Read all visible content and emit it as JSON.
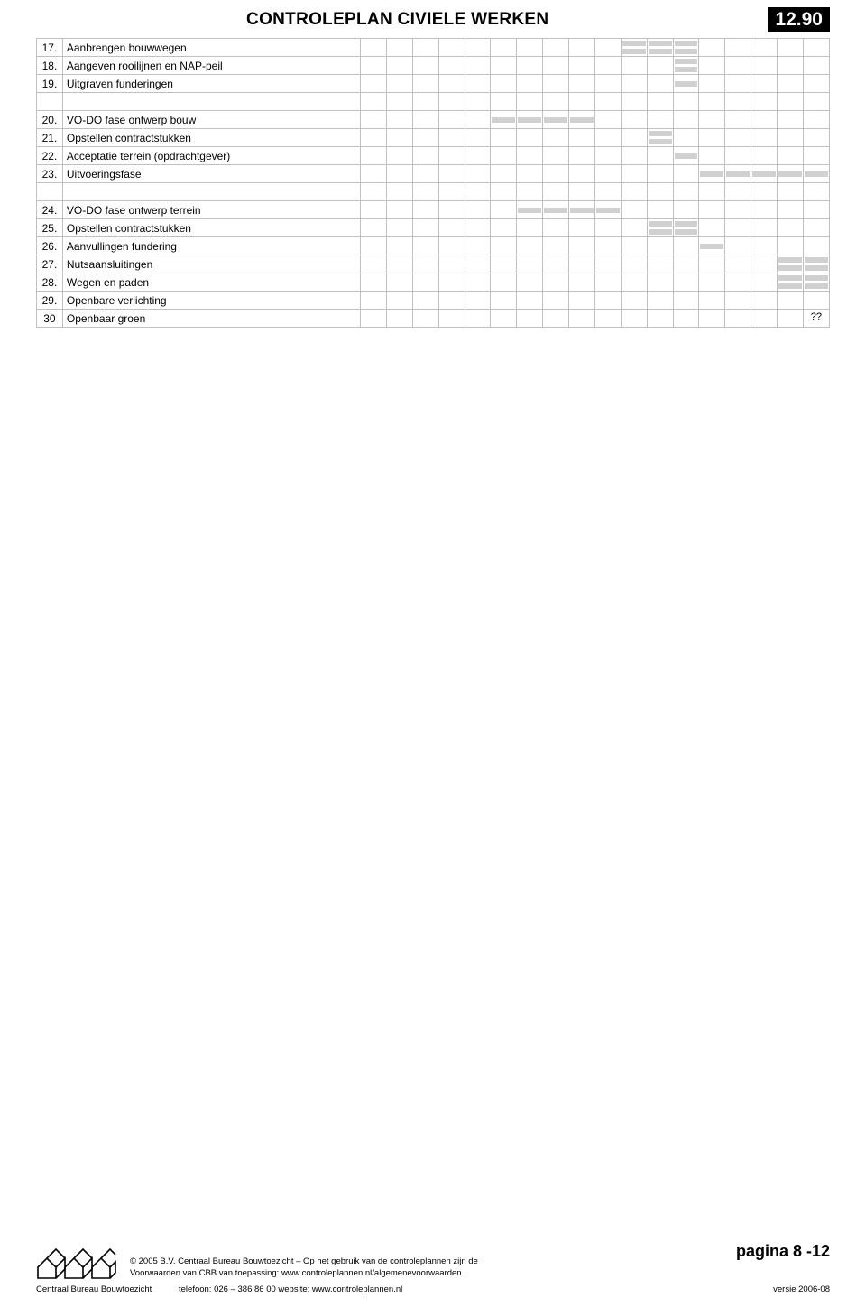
{
  "header": {
    "title": "CONTROLEPLAN CIVIELE WERKEN",
    "code": "12.90"
  },
  "columns": 18,
  "rows": [
    {
      "num": "17.",
      "desc": "Aanbrengen bouwwegen",
      "bars": [
        {
          "col": 11,
          "style": "top"
        },
        {
          "col": 12,
          "style": "top"
        },
        {
          "col": 13,
          "style": "top"
        },
        {
          "col": 11,
          "style": "bot"
        },
        {
          "col": 12,
          "style": "bot"
        },
        {
          "col": 13,
          "style": "bot"
        }
      ]
    },
    {
      "num": "18.",
      "desc": "Aangeven rooilijnen en NAP-peil",
      "bars": [
        {
          "col": 13,
          "style": "top"
        },
        {
          "col": 13,
          "style": "bot"
        }
      ]
    },
    {
      "num": "19.",
      "desc": "Uitgraven funderingen",
      "bars": [
        {
          "col": 13,
          "style": "mid"
        }
      ]
    },
    {
      "spacer": true
    },
    {
      "num": "20.",
      "desc": "VO-DO fase ontwerp bouw",
      "bars": [
        {
          "col": 6,
          "style": "mid"
        },
        {
          "col": 7,
          "style": "mid"
        },
        {
          "col": 8,
          "style": "mid"
        },
        {
          "col": 9,
          "style": "mid"
        }
      ]
    },
    {
      "num": "21.",
      "desc": "Opstellen contractstukken",
      "bars": [
        {
          "col": 12,
          "style": "top"
        },
        {
          "col": 12,
          "style": "bot"
        }
      ]
    },
    {
      "num": "22.",
      "desc": "Acceptatie terrein (opdrachtgever)",
      "bars": [
        {
          "col": 13,
          "style": "mid"
        }
      ]
    },
    {
      "num": "23.",
      "desc": "Uitvoeringsfase",
      "bars": [
        {
          "col": 14,
          "style": "mid"
        },
        {
          "col": 15,
          "style": "mid"
        },
        {
          "col": 16,
          "style": "mid"
        },
        {
          "col": 17,
          "style": "mid"
        },
        {
          "col": 18,
          "style": "mid"
        }
      ]
    },
    {
      "spacer": true
    },
    {
      "num": "24.",
      "desc": "VO-DO fase ontwerp terrein",
      "bars": [
        {
          "col": 7,
          "style": "mid"
        },
        {
          "col": 8,
          "style": "mid"
        },
        {
          "col": 9,
          "style": "mid"
        },
        {
          "col": 10,
          "style": "mid"
        }
      ]
    },
    {
      "num": "25.",
      "desc": "Opstellen contractstukken",
      "bars": [
        {
          "col": 12,
          "style": "top"
        },
        {
          "col": 13,
          "style": "top"
        },
        {
          "col": 12,
          "style": "bot"
        },
        {
          "col": 13,
          "style": "bot"
        }
      ]
    },
    {
      "num": "26.",
      "desc": "Aanvullingen fundering",
      "bars": [
        {
          "col": 14,
          "style": "mid"
        }
      ]
    },
    {
      "num": "27.",
      "desc": "Nutsaansluitingen",
      "bars": [
        {
          "col": 17,
          "style": "top"
        },
        {
          "col": 18,
          "style": "top"
        },
        {
          "col": 17,
          "style": "bot"
        },
        {
          "col": 18,
          "style": "bot"
        }
      ]
    },
    {
      "num": "28.",
      "desc": "Wegen en paden",
      "bars": [
        {
          "col": 17,
          "style": "top"
        },
        {
          "col": 18,
          "style": "top"
        },
        {
          "col": 17,
          "style": "bot"
        },
        {
          "col": 18,
          "style": "bot"
        }
      ]
    },
    {
      "num": "29.",
      "desc": "Openbare verlichting",
      "bars": []
    },
    {
      "num": "30",
      "desc": "Openbaar groen",
      "bars": [],
      "trail": "??"
    }
  ],
  "footer": {
    "copyright": "© 2005 B.V. Centraal Bureau Bouwtoezicht – Op het gebruik van de controleplannen zijn de",
    "voorwaarden": "Voorwaarden van CBB van toepassing: www.controleplannen.nl/algemenevoorwaarden.",
    "page": "pagina 8 -12",
    "org": "Centraal Bureau Bouwtoezicht",
    "tel": "telefoon: 026 – 386 86 00   website: www.controleplannen.nl",
    "version": "versie 2006-08"
  },
  "colors": {
    "bar": "#d0d0d0",
    "grid": "#c0c0c0",
    "header_code_bg": "#000000",
    "header_code_fg": "#ffffff",
    "text": "#000000"
  }
}
